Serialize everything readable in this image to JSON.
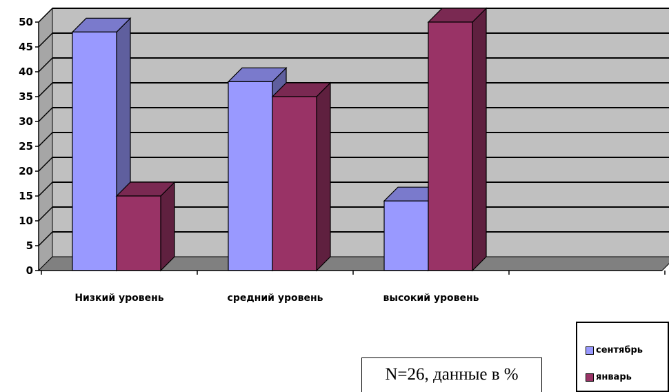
{
  "chart_data": {
    "type": "bar",
    "categories": [
      "Низкий уровень",
      "средний уровень",
      "высокий уровень"
    ],
    "series": [
      {
        "name": "сентябрь",
        "color": "#9999ff",
        "values": [
          48,
          38,
          14
        ]
      },
      {
        "name": "январь",
        "color": "#993366",
        "values": [
          15,
          35,
          50
        ]
      }
    ],
    "ylim": [
      0,
      50
    ],
    "yticks": [
      "0",
      "5",
      "10",
      "15",
      "20",
      "25",
      "30",
      "35",
      "40",
      "45",
      "50"
    ],
    "grid": true,
    "legend_position": "bottom-right",
    "wall_color": "#c0c0c0",
    "floor_color": "#808080"
  },
  "legend": {
    "items": [
      "сентябрь",
      "январь"
    ]
  },
  "note": "N=26, данные в %"
}
